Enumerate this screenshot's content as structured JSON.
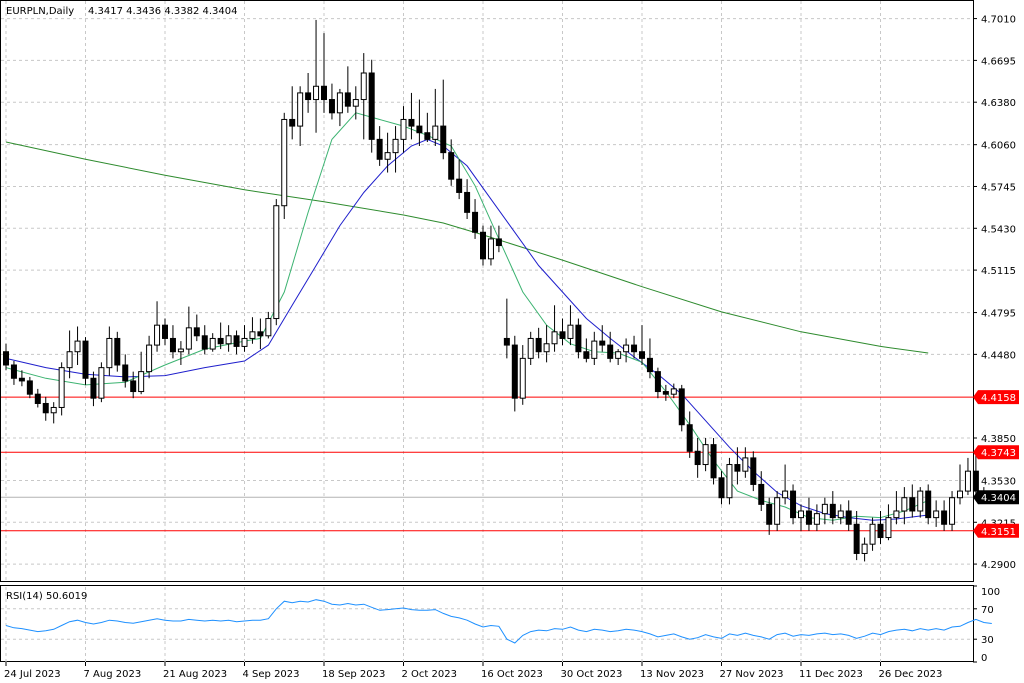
{
  "header": {
    "symbol": "EURPLN,Daily",
    "ohlc": "4.3417 4.3436 4.3382 4.3404"
  },
  "colors": {
    "bull_body": "#ffffff",
    "bear_body": "#000000",
    "candle_outline": "#000000",
    "ma_fast": "#3cb371",
    "ma_mid": "#1f1fcc",
    "ma_slow": "#2e8b2e",
    "level_line": "#ff0000",
    "level_badge": "#ff0000",
    "price_badge": "#000000",
    "rsi_line": "#1e90ff",
    "grid": "#c8c8c8"
  },
  "chart_data": [
    {
      "type": "candlestick",
      "symbol": "EURPLN",
      "timeframe": "Daily",
      "yticks": [
        "4.7010",
        "4.6695",
        "4.6380",
        "4.6060",
        "4.5745",
        "4.5430",
        "4.5115",
        "4.4795",
        "4.4480",
        "4.3850",
        "4.3530",
        "4.3215",
        "4.2900"
      ],
      "ylim": [
        4.2765,
        4.715
      ],
      "xticks": [
        {
          "label": "24 Jul 2023",
          "index": 0
        },
        {
          "label": "7 Aug 2023",
          "index": 10
        },
        {
          "label": "21 Aug 2023",
          "index": 20
        },
        {
          "label": "4 Sep 2023",
          "index": 30
        },
        {
          "label": "18 Sep 2023",
          "index": 40
        },
        {
          "label": "2 Oct 2023",
          "index": 50
        },
        {
          "label": "16 Oct 2023",
          "index": 60
        },
        {
          "label": "30 Oct 2023",
          "index": 70
        },
        {
          "label": "13 Nov 2023",
          "index": 80
        },
        {
          "label": "27 Nov 2023",
          "index": 90
        },
        {
          "label": "11 Dec 2023",
          "index": 100
        },
        {
          "label": "26 Dec 2023",
          "index": 110
        }
      ],
      "candles": [
        [
          4.45,
          4.456,
          4.436,
          4.44
        ],
        [
          4.44,
          4.443,
          4.425,
          4.43
        ],
        [
          4.43,
          4.436,
          4.424,
          4.428
        ],
        [
          4.428,
          4.431,
          4.415,
          4.418
        ],
        [
          4.418,
          4.422,
          4.408,
          4.411
        ],
        [
          4.411,
          4.416,
          4.398,
          4.404
        ],
        [
          4.404,
          4.412,
          4.396,
          4.408
        ],
        [
          4.408,
          4.442,
          4.402,
          4.438
        ],
        [
          4.438,
          4.466,
          4.43,
          4.45
        ],
        [
          4.45,
          4.469,
          4.44,
          4.458
        ],
        [
          4.458,
          4.461,
          4.425,
          4.43
        ],
        [
          4.43,
          4.435,
          4.409,
          4.415
        ],
        [
          4.415,
          4.442,
          4.412,
          4.438
        ],
        [
          4.438,
          4.469,
          4.432,
          4.46
        ],
        [
          4.46,
          4.465,
          4.435,
          4.44
        ],
        [
          4.44,
          4.448,
          4.423,
          4.428
        ],
        [
          4.428,
          4.435,
          4.415,
          4.42
        ],
        [
          4.42,
          4.45,
          4.418,
          4.435
        ],
        [
          4.435,
          4.462,
          4.43,
          4.455
        ],
        [
          4.455,
          4.488,
          4.45,
          4.47
        ],
        [
          4.47,
          4.475,
          4.455,
          4.46
        ],
        [
          4.46,
          4.47,
          4.445,
          4.45
        ],
        [
          4.45,
          4.458,
          4.44,
          4.452
        ],
        [
          4.452,
          4.484,
          4.448,
          4.468
        ],
        [
          4.468,
          4.478,
          4.458,
          4.462
        ],
        [
          4.462,
          4.47,
          4.448,
          4.452
        ],
        [
          4.452,
          4.464,
          4.45,
          4.46
        ],
        [
          4.46,
          4.472,
          4.452,
          4.456
        ],
        [
          4.456,
          4.47,
          4.45,
          4.462
        ],
        [
          4.462,
          4.466,
          4.448,
          4.454
        ],
        [
          4.454,
          4.47,
          4.45,
          4.46
        ],
        [
          4.46,
          4.476,
          4.456,
          4.465
        ],
        [
          4.465,
          4.475,
          4.452,
          4.462
        ],
        [
          4.462,
          4.48,
          4.46,
          4.475
        ],
        [
          4.475,
          4.565,
          4.47,
          4.56
        ],
        [
          4.56,
          4.63,
          4.55,
          4.625
        ],
        [
          4.625,
          4.65,
          4.61,
          4.62
        ],
        [
          4.62,
          4.65,
          4.605,
          4.645
        ],
        [
          4.645,
          4.66,
          4.63,
          4.64
        ],
        [
          4.64,
          4.7,
          4.615,
          4.65
        ],
        [
          4.65,
          4.69,
          4.63,
          4.64
        ],
        [
          4.64,
          4.652,
          4.625,
          4.63
        ],
        [
          4.63,
          4.648,
          4.62,
          4.645
        ],
        [
          4.645,
          4.665,
          4.63,
          4.635
        ],
        [
          4.635,
          4.65,
          4.625,
          4.64
        ],
        [
          4.64,
          4.675,
          4.61,
          4.66
        ],
        [
          4.66,
          4.67,
          4.6,
          4.61
        ],
        [
          4.61,
          4.62,
          4.59,
          4.595
        ],
        [
          4.595,
          4.615,
          4.585,
          4.6
        ],
        [
          4.6,
          4.62,
          4.585,
          4.61
        ],
        [
          4.61,
          4.635,
          4.6,
          4.625
        ],
        [
          4.625,
          4.645,
          4.61,
          4.62
        ],
        [
          4.62,
          4.64,
          4.605,
          4.615
        ],
        [
          4.615,
          4.63,
          4.608,
          4.61
        ],
        [
          4.61,
          4.648,
          4.605,
          4.62
        ],
        [
          4.62,
          4.655,
          4.595,
          4.6
        ],
        [
          4.6,
          4.61,
          4.575,
          4.58
        ],
        [
          4.58,
          4.595,
          4.565,
          4.57
        ],
        [
          4.57,
          4.58,
          4.55,
          4.555
        ],
        [
          4.555,
          4.565,
          4.535,
          4.54
        ],
        [
          4.54,
          4.545,
          4.515,
          4.52
        ],
        [
          4.52,
          4.545,
          4.515,
          4.535
        ],
        [
          4.535,
          4.545,
          4.525,
          4.53
        ],
        [
          4.46,
          4.49,
          4.445,
          4.455
        ],
        [
          4.455,
          4.462,
          4.405,
          4.415
        ],
        [
          4.415,
          4.455,
          4.41,
          4.445
        ],
        [
          4.445,
          4.465,
          4.44,
          4.46
        ],
        [
          4.46,
          4.468,
          4.445,
          4.45
        ],
        [
          4.45,
          4.47,
          4.442,
          4.456
        ],
        [
          4.456,
          4.485,
          4.45,
          4.465
        ],
        [
          4.465,
          4.475,
          4.455,
          4.46
        ],
        [
          4.46,
          4.485,
          4.455,
          4.47
        ],
        [
          4.47,
          4.475,
          4.445,
          4.45
        ],
        [
          4.45,
          4.46,
          4.442,
          4.445
        ],
        [
          4.445,
          4.465,
          4.44,
          4.458
        ],
        [
          4.458,
          4.47,
          4.45,
          4.455
        ],
        [
          4.455,
          4.465,
          4.442,
          4.445
        ],
        [
          4.445,
          4.452,
          4.44,
          4.45
        ],
        [
          4.45,
          4.46,
          4.442,
          4.455
        ],
        [
          4.455,
          4.462,
          4.445,
          4.45
        ],
        [
          4.45,
          4.47,
          4.44,
          4.445
        ],
        [
          4.445,
          4.46,
          4.43,
          4.435
        ],
        [
          4.435,
          4.438,
          4.415,
          4.42
        ],
        [
          4.42,
          4.425,
          4.413,
          4.418
        ],
        [
          4.418,
          4.426,
          4.415,
          4.422
        ],
        [
          4.422,
          4.425,
          4.39,
          4.395
        ],
        [
          4.395,
          4.405,
          4.37,
          4.375
        ],
        [
          4.375,
          4.385,
          4.355,
          4.365
        ],
        [
          4.365,
          4.385,
          4.36,
          4.38
        ],
        [
          4.38,
          4.385,
          4.35,
          4.355
        ],
        [
          4.355,
          4.36,
          4.335,
          4.34
        ],
        [
          4.34,
          4.37,
          4.335,
          4.365
        ],
        [
          4.365,
          4.378,
          4.35,
          4.36
        ],
        [
          4.36,
          4.378,
          4.355,
          4.37
        ],
        [
          4.37,
          4.375,
          4.345,
          4.35
        ],
        [
          4.35,
          4.36,
          4.33,
          4.335
        ],
        [
          4.335,
          4.34,
          4.312,
          4.32
        ],
        [
          4.32,
          4.345,
          4.315,
          4.34
        ],
        [
          4.34,
          4.365,
          4.335,
          4.345
        ],
        [
          4.345,
          4.35,
          4.32,
          4.325
        ],
        [
          4.325,
          4.335,
          4.315,
          4.33
        ],
        [
          4.33,
          4.34,
          4.315,
          4.32
        ],
        [
          4.32,
          4.335,
          4.315,
          4.328
        ],
        [
          4.328,
          4.34,
          4.32,
          4.335
        ],
        [
          4.335,
          4.345,
          4.32,
          4.325
        ],
        [
          4.325,
          4.335,
          4.32,
          4.33
        ],
        [
          4.33,
          4.338,
          4.315,
          4.32
        ],
        [
          4.32,
          4.33,
          4.293,
          4.298
        ],
        [
          4.298,
          4.31,
          4.292,
          4.305
        ],
        [
          4.305,
          4.325,
          4.3,
          4.32
        ],
        [
          4.32,
          4.33,
          4.305,
          4.31
        ],
        [
          4.31,
          4.335,
          4.308,
          4.325
        ],
        [
          4.325,
          4.345,
          4.32,
          4.33
        ],
        [
          4.33,
          4.348,
          4.32,
          4.34
        ],
        [
          4.34,
          4.35,
          4.325,
          4.33
        ],
        [
          4.33,
          4.348,
          4.325,
          4.345
        ],
        [
          4.345,
          4.35,
          4.32,
          4.325
        ],
        [
          4.325,
          4.338,
          4.318,
          4.33
        ],
        [
          4.33,
          4.338,
          4.315,
          4.32
        ],
        [
          4.32,
          4.345,
          4.315,
          4.34
        ],
        [
          4.34,
          4.365,
          4.335,
          4.345
        ],
        [
          4.345,
          4.37,
          4.342,
          4.36
        ],
        [
          4.36,
          4.375,
          4.34,
          4.345
        ],
        [
          4.345,
          4.348,
          4.338,
          4.3417
        ],
        [
          4.3417,
          4.3436,
          4.3382,
          4.3404
        ]
      ],
      "ma_fast": [
        [
          0,
          4.438
        ],
        [
          5,
          4.43
        ],
        [
          10,
          4.425
        ],
        [
          15,
          4.427
        ],
        [
          20,
          4.44
        ],
        [
          25,
          4.452
        ],
        [
          30,
          4.458
        ],
        [
          32,
          4.46
        ],
        [
          35,
          4.495
        ],
        [
          38,
          4.555
        ],
        [
          41,
          4.61
        ],
        [
          44,
          4.63
        ],
        [
          47,
          4.625
        ],
        [
          50,
          4.62
        ],
        [
          53,
          4.613
        ],
        [
          56,
          4.605
        ],
        [
          59,
          4.575
        ],
        [
          62,
          4.535
        ],
        [
          65,
          4.495
        ],
        [
          68,
          4.47
        ],
        [
          71,
          4.456
        ],
        [
          74,
          4.45
        ],
        [
          77,
          4.449
        ],
        [
          80,
          4.442
        ],
        [
          83,
          4.42
        ],
        [
          86,
          4.395
        ],
        [
          89,
          4.368
        ],
        [
          92,
          4.345
        ],
        [
          95,
          4.338
        ],
        [
          98,
          4.333
        ],
        [
          101,
          4.325
        ],
        [
          104,
          4.323
        ],
        [
          107,
          4.326
        ],
        [
          110,
          4.325
        ],
        [
          113,
          4.33
        ],
        [
          116,
          4.338
        ]
      ],
      "ma_mid": [
        [
          0,
          4.445
        ],
        [
          5,
          4.438
        ],
        [
          10,
          4.433
        ],
        [
          15,
          4.431
        ],
        [
          20,
          4.432
        ],
        [
          25,
          4.438
        ],
        [
          30,
          4.443
        ],
        [
          33,
          4.455
        ],
        [
          36,
          4.485
        ],
        [
          39,
          4.515
        ],
        [
          42,
          4.545
        ],
        [
          45,
          4.57
        ],
        [
          48,
          4.59
        ],
        [
          51,
          4.605
        ],
        [
          53,
          4.61
        ],
        [
          55,
          4.605
        ],
        [
          58,
          4.59
        ],
        [
          61,
          4.565
        ],
        [
          64,
          4.54
        ],
        [
          67,
          4.515
        ],
        [
          70,
          4.495
        ],
        [
          73,
          4.475
        ],
        [
          76,
          4.46
        ],
        [
          79,
          4.446
        ],
        [
          82,
          4.433
        ],
        [
          85,
          4.418
        ],
        [
          88,
          4.398
        ],
        [
          91,
          4.378
        ],
        [
          94,
          4.36
        ],
        [
          97,
          4.344
        ],
        [
          100,
          4.334
        ],
        [
          103,
          4.328
        ],
        [
          106,
          4.325
        ],
        [
          109,
          4.323
        ],
        [
          112,
          4.324
        ],
        [
          116,
          4.327
        ]
      ],
      "ma_slow": [
        [
          0,
          4.608
        ],
        [
          10,
          4.595
        ],
        [
          20,
          4.583
        ],
        [
          30,
          4.572
        ],
        [
          40,
          4.563
        ],
        [
          50,
          4.553
        ],
        [
          55,
          4.547
        ],
        [
          60,
          4.538
        ],
        [
          70,
          4.519
        ],
        [
          80,
          4.499
        ],
        [
          90,
          4.48
        ],
        [
          100,
          4.465
        ],
        [
          110,
          4.454
        ],
        [
          116,
          4.449
        ]
      ],
      "levels": [
        4.4158,
        4.3743,
        4.3151
      ],
      "level_labels": [
        "4.4158",
        "4.3743",
        "4.3151"
      ],
      "current_price": 4.3404,
      "current_price_label": "4.3404"
    },
    {
      "type": "line",
      "title": "RSI(14) 50.6019",
      "yticks": [
        "100",
        "70",
        "30",
        "0"
      ],
      "ylim": [
        0,
        100
      ],
      "levels": [
        70,
        30
      ],
      "values": [
        48,
        45,
        44,
        42,
        40,
        41,
        43,
        48,
        53,
        55,
        52,
        50,
        52,
        55,
        54,
        52,
        51,
        53,
        55,
        57,
        55,
        54,
        54,
        56,
        55,
        54,
        55,
        54,
        55,
        53,
        54,
        55,
        55,
        57,
        70,
        80,
        78,
        80,
        79,
        82,
        80,
        76,
        75,
        77,
        75,
        76,
        72,
        68,
        69,
        70,
        71,
        69,
        68,
        68,
        69,
        64,
        60,
        58,
        55,
        50,
        46,
        48,
        47,
        30,
        25,
        35,
        40,
        42,
        41,
        44,
        43,
        46,
        42,
        40,
        43,
        42,
        40,
        41,
        43,
        42,
        40,
        37,
        33,
        35,
        37,
        33,
        30,
        32,
        36,
        33,
        31,
        37,
        35,
        38,
        35,
        33,
        30,
        36,
        38,
        34,
        36,
        35,
        37,
        38,
        36,
        37,
        35,
        31,
        34,
        38,
        36,
        40,
        42,
        43,
        41,
        44,
        42,
        44,
        42,
        46,
        47,
        52,
        56,
        52,
        50.6
      ]
    }
  ]
}
